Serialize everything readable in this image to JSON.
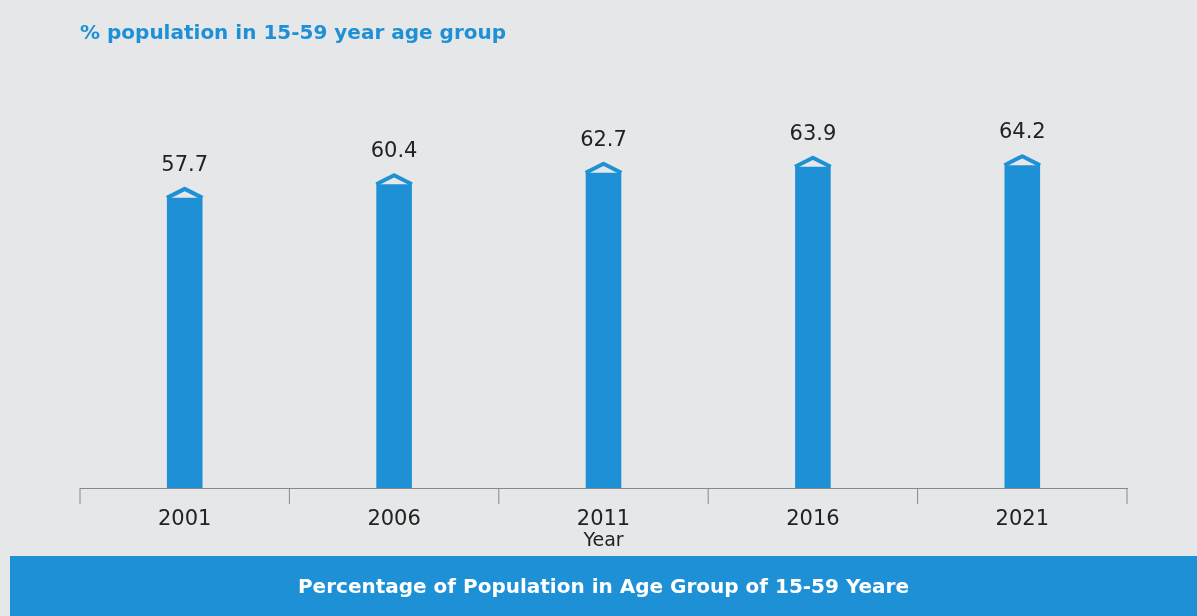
{
  "chart_data": {
    "type": "bar",
    "title": "% population in 15-59 year age group",
    "xlabel": "Year",
    "categories": [
      "2001",
      "2006",
      "2011",
      "2016",
      "2021"
    ],
    "values": [
      57.7,
      60.4,
      62.7,
      63.9,
      64.2
    ],
    "color": "#1e90d6",
    "tick_labels": "x",
    "data_labels": true,
    "legend": false,
    "annotations": [
      "Percentage of Population in Age Group of 15-59 Yeare"
    ]
  }
}
